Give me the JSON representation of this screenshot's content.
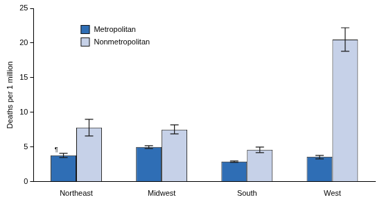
{
  "chart_data": {
    "type": "bar",
    "y_label": "Deaths per 1 million",
    "categories": [
      "Northeast",
      "Midwest",
      "South",
      "West"
    ],
    "series": [
      {
        "name": "Metropolitan",
        "color": "#2f6eb5",
        "values": [
          3.8,
          5.0,
          2.9,
          3.6
        ],
        "error_low": [
          3.5,
          4.8,
          2.8,
          3.3
        ],
        "error_high": [
          4.1,
          5.2,
          3.0,
          3.8
        ]
      },
      {
        "name": "Nonmetropolitan",
        "color": "#c6d1e8",
        "values": [
          7.8,
          7.5,
          4.6,
          20.5
        ],
        "error_low": [
          6.6,
          6.9,
          4.2,
          18.8
        ],
        "error_high": [
          9.0,
          8.2,
          5.0,
          22.2
        ]
      }
    ],
    "annotations": [
      {
        "text": "¶",
        "category": "Northeast",
        "series": "Metropolitan"
      }
    ],
    "ylim": [
      0,
      25
    ],
    "yticks": [
      0,
      5,
      10,
      15,
      20,
      25
    ],
    "grid": false,
    "legend": "upper left"
  }
}
